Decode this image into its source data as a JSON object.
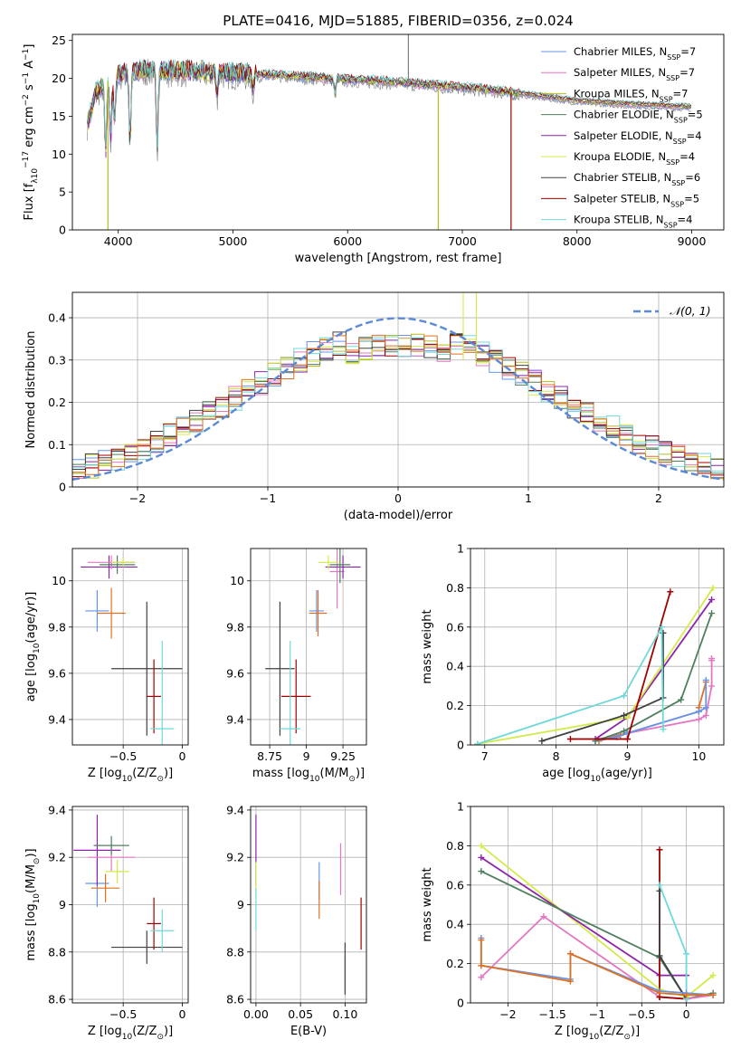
{
  "figure_title": "PLATE=0416, MJD=51885, FIBERID=0356, z=0.024",
  "colors": {
    "chabrier_miles": "#6495ed",
    "salpeter_miles": "#e377c2",
    "kroupa_miles": "#b5bd22",
    "chabrier_elodie": "#4e7f5e",
    "salpeter_elodie": "#8e24aa",
    "kroupa_elodie": "#d4ea4a",
    "chabrier_stelib": "#404040",
    "salpeter_stelib": "#a00000",
    "kroupa_stelib": "#70d8d8",
    "orange": "#e07020",
    "normal_curve": "#5b8ad6"
  },
  "chart_data": [
    {
      "id": "spectrum",
      "type": "line",
      "title": "PLATE=0416, MJD=51885, FIBERID=0356, z=0.024",
      "xlabel": "wavelength [Angstrom, rest frame]",
      "ylabel_parts": [
        "Flux [f",
        "λ",
        "10",
        "−17",
        " erg cm",
        "−2",
        " s",
        "−1",
        " A",
        "−1",
        "]"
      ],
      "xlim": [
        3600,
        9280
      ],
      "ylim": [
        0,
        25.8
      ],
      "xticks": [
        4000,
        5000,
        6000,
        7000,
        8000,
        9000
      ],
      "yticks": [
        0,
        5,
        10,
        15,
        20,
        25
      ],
      "grid": false,
      "legend_position": "top-right",
      "legend": [
        {
          "label": "Chabrier MILES, N",
          "sub": "SSP",
          "val": "=7",
          "color": "#6495ed"
        },
        {
          "label": "Salpeter MILES, N",
          "sub": "SSP",
          "val": "=7",
          "color": "#e377c2"
        },
        {
          "label": "Kroupa MILES, N",
          "sub": "SSP",
          "val": "=7",
          "color": "#b5bd22"
        },
        {
          "label": "Chabrier ELODIE, N",
          "sub": "SSP",
          "val": "=5",
          "color": "#4e7f5e"
        },
        {
          "label": "Salpeter ELODIE, N",
          "sub": "SSP",
          "val": "=4",
          "color": "#8e24aa"
        },
        {
          "label": "Kroupa ELODIE, N",
          "sub": "SSP",
          "val": "=4",
          "color": "#d4ea4a"
        },
        {
          "label": "Chabrier STELIB, N",
          "sub": "SSP",
          "val": "=6",
          "color": "#404040"
        },
        {
          "label": "Salpeter STELIB, N",
          "sub": "SSP",
          "val": "=5",
          "color": "#a00000"
        },
        {
          "label": "Kroupa STELIB, N",
          "sub": "SSP",
          "val": "=4",
          "color": "#70d8d8"
        }
      ],
      "continuum": [
        [
          3730,
          14
        ],
        [
          3800,
          18
        ],
        [
          3900,
          19.5
        ],
        [
          4000,
          20.5
        ],
        [
          4200,
          21
        ],
        [
          4500,
          21
        ],
        [
          4800,
          20.8
        ],
        [
          5200,
          20.5
        ],
        [
          5600,
          20.2
        ],
        [
          6000,
          19.8
        ],
        [
          6400,
          19.5
        ],
        [
          6800,
          19
        ],
        [
          7200,
          18.5
        ],
        [
          7600,
          17.8
        ],
        [
          8000,
          17
        ],
        [
          8400,
          16.6
        ],
        [
          8800,
          16.3
        ],
        [
          9000,
          16.2
        ]
      ],
      "absorption_features": [
        [
          3890,
          9
        ],
        [
          3934,
          8
        ],
        [
          3968,
          6
        ],
        [
          4102,
          9
        ],
        [
          4340,
          10
        ],
        [
          4861,
          3
        ],
        [
          5175,
          2
        ],
        [
          5890,
          2
        ]
      ],
      "spikes": [
        [
          3910,
          0,
          "#b5bd22"
        ],
        [
          6790,
          0,
          "#b5bd22"
        ],
        [
          7425,
          0,
          "#a00000"
        ],
        [
          6530,
          25.8,
          "#808080"
        ]
      ]
    },
    {
      "id": "residuals",
      "type": "histogram",
      "xlabel": "(data-model)/error",
      "ylabel": "Normed distribution",
      "xlim": [
        -2.5,
        2.5
      ],
      "ylim": [
        0,
        0.46
      ],
      "xticks": [
        -2,
        -1,
        0,
        1,
        2
      ],
      "yticks": [
        0.0,
        0.1,
        0.2,
        0.3,
        0.4
      ],
      "grid": true,
      "legend_position": "top-right",
      "legend": [
        {
          "label": "𝒩(0, 1)",
          "color": "#5b8ad6",
          "style": "dashed"
        }
      ],
      "bin_width": 0.1,
      "series_colors": [
        "#6495ed",
        "#e377c2",
        "#b5bd22",
        "#4e7f5e",
        "#8e24aa",
        "#d4ea4a",
        "#404040",
        "#a00000",
        "#70d8d8",
        "#e07020"
      ],
      "peak_bin": [
        0.5,
        0.46,
        "#d4ea4a"
      ]
    },
    {
      "id": "age_vs_Z",
      "type": "scatter",
      "xlabel_parts": [
        "Z [log",
        "10",
        "(Z/Z",
        "⊙",
        ")]"
      ],
      "ylabel_parts": [
        "age  [log",
        "10",
        "(age/yr)]"
      ],
      "xlim": [
        -0.93,
        0.05
      ],
      "ylim": [
        9.29,
        10.14
      ],
      "xticks": [
        -0.5,
        0.0
      ],
      "yticks": [
        9.4,
        9.6,
        9.8,
        10.0
      ],
      "grid": true,
      "points": [
        {
          "x": -0.72,
          "y": 9.87,
          "xerr": 0.1,
          "yerr": 0.09,
          "color": "#6495ed"
        },
        {
          "x": -0.6,
          "y": 9.86,
          "xerr": 0.12,
          "yerr": 0.11,
          "color": "#e07020"
        },
        {
          "x": -0.62,
          "y": 10.06,
          "xerr": 0.24,
          "yerr": 0.05,
          "color": "#8e24aa"
        },
        {
          "x": -0.6,
          "y": 10.08,
          "xerr": 0.2,
          "yerr": 0.03,
          "color": "#e377c2"
        },
        {
          "x": -0.55,
          "y": 10.07,
          "xerr": 0.15,
          "yerr": 0.04,
          "color": "#4e7f5e"
        },
        {
          "x": -0.5,
          "y": 10.08,
          "xerr": 0.1,
          "yerr": 0.02,
          "color": "#d4ea4a"
        },
        {
          "x": -0.3,
          "y": 9.62,
          "xerr": 0.3,
          "yerr": 0.29,
          "color": "#404040"
        },
        {
          "x": -0.24,
          "y": 9.5,
          "xerr": 0.06,
          "yerr": 0.16,
          "color": "#a00000"
        },
        {
          "x": -0.17,
          "y": 9.36,
          "xerr": 0.1,
          "yerr": 0.38,
          "color": "#70d8d8"
        }
      ]
    },
    {
      "id": "age_vs_mass",
      "type": "scatter",
      "xlabel_parts": [
        "mass [log",
        "10",
        "(M/M",
        "⊙",
        ")]"
      ],
      "ylabel_parts": [
        "",
        "",
        ""
      ],
      "xlim": [
        8.62,
        9.41
      ],
      "ylim": [
        9.29,
        10.14
      ],
      "xticks": [
        8.75,
        9.0,
        9.25
      ],
      "yticks": [
        9.4,
        9.6,
        9.8,
        10.0
      ],
      "grid": true,
      "points": [
        {
          "x": 9.07,
          "y": 9.87,
          "xerr": 0.05,
          "yerr": 0.09,
          "color": "#6495ed"
        },
        {
          "x": 9.08,
          "y": 9.86,
          "xerr": 0.06,
          "yerr": 0.1,
          "color": "#e07020"
        },
        {
          "x": 9.21,
          "y": 10.04,
          "xerr": 0.05,
          "yerr": 0.16,
          "color": "#e377c2"
        },
        {
          "x": 9.25,
          "y": 10.06,
          "xerr": 0.12,
          "yerr": 0.05,
          "color": "#8e24aa"
        },
        {
          "x": 9.23,
          "y": 10.07,
          "xerr": 0.07,
          "yerr": 0.08,
          "color": "#4e7f5e"
        },
        {
          "x": 9.15,
          "y": 10.08,
          "xerr": 0.07,
          "yerr": 0.03,
          "color": "#d4ea4a"
        },
        {
          "x": 8.82,
          "y": 9.62,
          "xerr": 0.1,
          "yerr": 0.29,
          "color": "#404040"
        },
        {
          "x": 8.93,
          "y": 9.5,
          "xerr": 0.1,
          "yerr": 0.16,
          "color": "#a00000"
        },
        {
          "x": 8.89,
          "y": 9.36,
          "xerr": 0.07,
          "yerr": 0.38,
          "color": "#70d8d8"
        }
      ]
    },
    {
      "id": "massweight_vs_age",
      "type": "line",
      "xlabel_parts": [
        "age  [log",
        "10",
        "(age/yr)]"
      ],
      "ylabel": "mass weight",
      "xlim": [
        6.8,
        10.35
      ],
      "ylim": [
        0,
        1.0
      ],
      "xticks": [
        7,
        8,
        9,
        10
      ],
      "yticks": [
        0.0,
        0.2,
        0.4,
        0.6,
        0.8,
        1.0
      ],
      "grid": true,
      "series": [
        {
          "color": "#e377c2",
          "x": [
            8.6,
            9.0,
            10.0,
            10.1,
            10.18,
            10.18,
            10.18
          ],
          "y": [
            0.03,
            0.06,
            0.13,
            0.15,
            0.3,
            0.43,
            0.44
          ]
        },
        {
          "color": "#e07020",
          "x": [
            8.6,
            8.9,
            9.0,
            10.0,
            10.0,
            10.1
          ],
          "y": [
            0.02,
            0.05,
            0.06,
            0.17,
            0.19,
            0.32
          ]
        },
        {
          "color": "#6495ed",
          "x": [
            8.55,
            8.85,
            9.0,
            10.0,
            10.1,
            10.1
          ],
          "y": [
            0.02,
            0.04,
            0.06,
            0.17,
            0.19,
            0.33
          ]
        },
        {
          "color": "#8e24aa",
          "x": [
            8.55,
            9.0,
            10.18
          ],
          "y": [
            0.03,
            0.14,
            0.74
          ]
        },
        {
          "color": "#4e7f5e",
          "x": [
            8.55,
            8.95,
            9.75,
            10.18
          ],
          "y": [
            0.02,
            0.07,
            0.23,
            0.67
          ]
        },
        {
          "color": "#d4ea4a",
          "x": [
            6.9,
            9.0,
            10.2
          ],
          "y": [
            0.005,
            0.14,
            0.8
          ]
        },
        {
          "color": "#404040",
          "x": [
            7.8,
            8.95,
            9.5,
            9.5
          ],
          "y": [
            0.02,
            0.15,
            0.24,
            0.57
          ]
        },
        {
          "color": "#a00000",
          "x": [
            8.2,
            9.0,
            9.6
          ],
          "y": [
            0.03,
            0.03,
            0.78
          ]
        },
        {
          "color": "#70d8d8",
          "x": [
            6.9,
            8.95,
            9.48,
            9.5
          ],
          "y": [
            0.005,
            0.25,
            0.6,
            0.08
          ]
        }
      ]
    },
    {
      "id": "mass_vs_Z",
      "type": "scatter",
      "xlabel_parts": [
        "Z [log",
        "10",
        "(Z/Z",
        "⊙",
        ")]"
      ],
      "ylabel_parts": [
        "mass [log",
        "10",
        "(M/M",
        "⊙",
        ")]"
      ],
      "xlim": [
        -0.93,
        0.05
      ],
      "ylim": [
        8.585,
        9.415
      ],
      "xticks": [
        -0.5,
        0.0
      ],
      "yticks": [
        8.6,
        8.8,
        9.0,
        9.2,
        9.4
      ],
      "grid": true,
      "points": [
        {
          "x": -0.72,
          "y": 9.09,
          "xerr": 0.1,
          "yerr": 0.1,
          "color": "#6495ed"
        },
        {
          "x": -0.65,
          "y": 9.07,
          "xerr": 0.12,
          "yerr": 0.06,
          "color": "#e07020"
        },
        {
          "x": -0.72,
          "y": 9.23,
          "xerr": 0.2,
          "yerr": 0.15,
          "color": "#8e24aa"
        },
        {
          "x": -0.6,
          "y": 9.2,
          "xerr": 0.2,
          "yerr": 0.06,
          "color": "#e377c2"
        },
        {
          "x": -0.6,
          "y": 9.25,
          "xerr": 0.15,
          "yerr": 0.04,
          "color": "#4e7f5e"
        },
        {
          "x": -0.55,
          "y": 9.14,
          "xerr": 0.1,
          "yerr": 0.05,
          "color": "#d4ea4a"
        },
        {
          "x": -0.3,
          "y": 8.82,
          "xerr": 0.3,
          "yerr": 0.07,
          "color": "#404040"
        },
        {
          "x": -0.24,
          "y": 8.92,
          "xerr": 0.06,
          "yerr": 0.11,
          "color": "#a00000"
        },
        {
          "x": -0.17,
          "y": 8.89,
          "xerr": 0.1,
          "yerr": 0.09,
          "color": "#70d8d8"
        }
      ]
    },
    {
      "id": "mass_vs_ebv",
      "type": "scatter",
      "xlabel": "E(B-V)",
      "ylabel": "",
      "xlim": [
        -0.006,
        0.124
      ],
      "ylim": [
        8.585,
        9.415
      ],
      "xticks": [
        0.0,
        0.05,
        0.1
      ],
      "xtick_labels": [
        "0.00",
        "0.05",
        "0.10"
      ],
      "yticks": [
        8.6,
        8.8,
        9.0,
        9.2,
        9.4
      ],
      "grid": true,
      "points": [
        {
          "x": 0.0,
          "y": 9.23,
          "xerr": 0.0,
          "yerr": 0.15,
          "color": "#8e24aa"
        },
        {
          "x": 0.0,
          "y": 9.1,
          "xerr": 0.0,
          "yerr": 0.08,
          "color": "#d4ea4a"
        },
        {
          "x": 0.0,
          "y": 8.98,
          "xerr": 0.0,
          "yerr": 0.09,
          "color": "#70d8d8"
        },
        {
          "x": 0.071,
          "y": 9.1,
          "xerr": 0.0,
          "yerr": 0.08,
          "color": "#6495ed"
        },
        {
          "x": 0.071,
          "y": 9.02,
          "xerr": 0.0,
          "yerr": 0.08,
          "color": "#e07020"
        },
        {
          "x": 0.095,
          "y": 9.15,
          "xerr": 0.0,
          "yerr": 0.11,
          "color": "#e377c2"
        },
        {
          "x": 0.1,
          "y": 8.73,
          "xerr": 0.0,
          "yerr": 0.11,
          "color": "#404040"
        },
        {
          "x": 0.118,
          "y": 8.92,
          "xerr": 0.0,
          "yerr": 0.11,
          "color": "#a00000"
        }
      ]
    },
    {
      "id": "massweight_vs_Z",
      "type": "line",
      "xlabel_parts": [
        "Z [log",
        "10",
        "(Z/Z",
        "⊙",
        ")]"
      ],
      "ylabel": "mass weight",
      "xlim": [
        -2.42,
        0.42
      ],
      "ylim": [
        0,
        1.0
      ],
      "xticks": [
        -2.0,
        -1.5,
        -1.0,
        -0.5,
        0.0
      ],
      "yticks": [
        0.0,
        0.2,
        0.4,
        0.6,
        0.8,
        1.0
      ],
      "grid": true,
      "series": [
        {
          "color": "#d4ea4a",
          "x": [
            -2.3,
            -0.3,
            0.0,
            0.0,
            0.3
          ],
          "y": [
            0.8,
            0.07,
            0.03,
            0.03,
            0.14
          ]
        },
        {
          "color": "#8e24aa",
          "x": [
            -2.3,
            -0.3,
            0.0
          ],
          "y": [
            0.74,
            0.14,
            0.14
          ]
        },
        {
          "color": "#4e7f5e",
          "x": [
            -2.3,
            -0.3,
            0.0,
            0.3
          ],
          "y": [
            0.67,
            0.23,
            0.02,
            0.05
          ]
        },
        {
          "color": "#e377c2",
          "x": [
            -2.3,
            -1.6,
            -0.3,
            0.0,
            0.3
          ],
          "y": [
            0.13,
            0.44,
            0.03,
            0.02,
            0.04
          ]
        },
        {
          "color": "#a00000",
          "x": [
            -0.3,
            -0.3,
            -0.3,
            0.0
          ],
          "y": [
            0.78,
            0.03,
            0.03,
            0.02
          ]
        },
        {
          "color": "#404040",
          "x": [
            -0.3,
            -0.3,
            0.0
          ],
          "y": [
            0.57,
            0.24,
            0.02
          ]
        },
        {
          "color": "#70d8d8",
          "x": [
            -0.3,
            0.0,
            0.0
          ],
          "y": [
            0.6,
            0.25,
            0.02
          ]
        },
        {
          "color": "#6495ed",
          "x": [
            -2.3,
            -2.3,
            -1.3,
            -1.3,
            -0.3,
            0.0,
            0.3
          ],
          "y": [
            0.33,
            0.19,
            0.12,
            0.25,
            0.06,
            0.05,
            0.04
          ]
        },
        {
          "color": "#e07020",
          "x": [
            -2.3,
            -2.3,
            -1.3,
            -1.3,
            -0.3,
            0.0,
            0.3
          ],
          "y": [
            0.32,
            0.19,
            0.11,
            0.25,
            0.05,
            0.04,
            0.04
          ]
        }
      ]
    }
  ]
}
